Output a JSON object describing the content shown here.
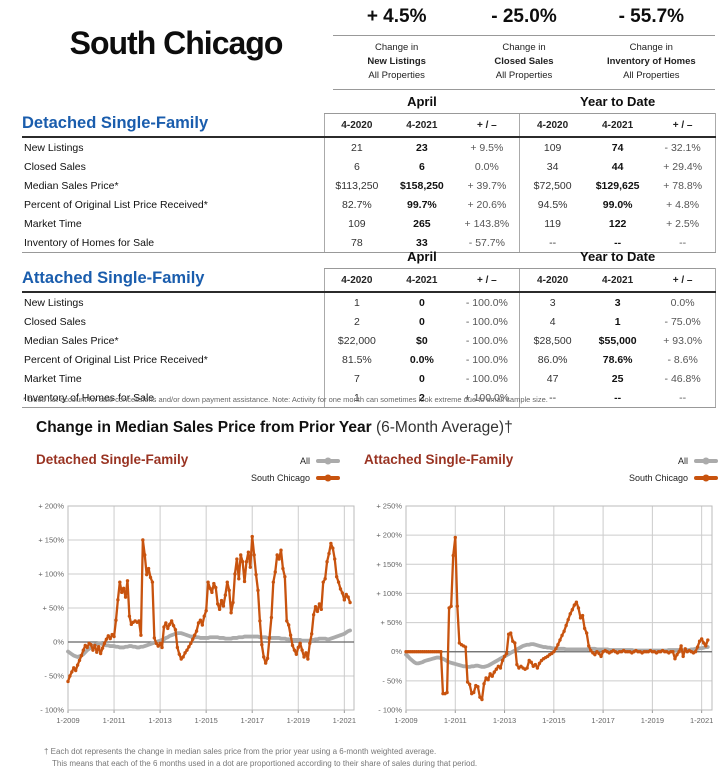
{
  "header": {
    "title": "South Chicago",
    "stats": [
      {
        "value": "+ 4.5%",
        "line1": "Change in",
        "line2": "New Listings",
        "line3": "All Properties"
      },
      {
        "value": "- 25.0%",
        "line1": "Change in",
        "line2": "Closed Sales",
        "line3": "All Properties"
      },
      {
        "value": "- 55.7%",
        "line1": "Change in",
        "line2": "Inventory of Homes",
        "line3": "All Properties"
      }
    ]
  },
  "tables": [
    {
      "title": "Detached Single-Family",
      "period_headers": [
        "April",
        "Year to Date"
      ],
      "col_headers": [
        "4-2020",
        "4-2021",
        "+ / –",
        "4-2020",
        "4-2021",
        "+ / –"
      ],
      "rows": [
        {
          "label": "New Listings",
          "cells": [
            "21",
            "23",
            "+ 9.5%",
            "109",
            "74",
            "- 32.1%"
          ]
        },
        {
          "label": "Closed Sales",
          "cells": [
            "6",
            "6",
            "0.0%",
            "34",
            "44",
            "+ 29.4%"
          ]
        },
        {
          "label": "Median Sales Price*",
          "cells": [
            "$113,250",
            "$158,250",
            "+ 39.7%",
            "$72,500",
            "$129,625",
            "+ 78.8%"
          ]
        },
        {
          "label": "Percent of Original List Price Received*",
          "cells": [
            "82.7%",
            "99.7%",
            "+ 20.6%",
            "94.5%",
            "99.0%",
            "+ 4.8%"
          ]
        },
        {
          "label": "Market Time",
          "cells": [
            "109",
            "265",
            "+ 143.8%",
            "119",
            "122",
            "+ 2.5%"
          ]
        },
        {
          "label": "Inventory of Homes for Sale",
          "cells": [
            "78",
            "33",
            "- 57.7%",
            "--",
            "--",
            "--"
          ]
        }
      ]
    },
    {
      "title": "Attached Single-Family",
      "period_headers": [
        "April",
        "Year to Date"
      ],
      "col_headers": [
        "4-2020",
        "4-2021",
        "+ / –",
        "4-2020",
        "4-2021",
        "+ / –"
      ],
      "rows": [
        {
          "label": "New Listings",
          "cells": [
            "1",
            "0",
            "- 100.0%",
            "3",
            "3",
            "0.0%"
          ]
        },
        {
          "label": "Closed Sales",
          "cells": [
            "2",
            "0",
            "- 100.0%",
            "4",
            "1",
            "- 75.0%"
          ]
        },
        {
          "label": "Median Sales Price*",
          "cells": [
            "$22,000",
            "$0",
            "- 100.0%",
            "$28,500",
            "$55,000",
            "+ 93.0%"
          ]
        },
        {
          "label": "Percent of Original List Price Received*",
          "cells": [
            "81.5%",
            "0.0%",
            "- 100.0%",
            "86.0%",
            "78.6%",
            "- 8.6%"
          ]
        },
        {
          "label": "Market Time",
          "cells": [
            "7",
            "0",
            "- 100.0%",
            "47",
            "25",
            "- 46.8%"
          ]
        },
        {
          "label": "Inventory of Homes for Sale",
          "cells": [
            "1",
            "2",
            "+ 100.0%",
            "--",
            "--",
            "--"
          ]
        }
      ]
    }
  ],
  "table_footnote": "* Does not account for sale concessions and/or down payment assistance. Note: Activity for one month can sometimes look extreme due to small sample size.",
  "charts_section": {
    "title_bold": "Change in Median Sales Price from Prior Year",
    "title_light": " (6-Month Average)†",
    "footnote_line1": "† Each dot represents the change in median sales price from the prior year using a 6-month weighted average.",
    "footnote_line2": "This means that each of the 6 months used in a dot are proportioned according to their share of sales during that period."
  },
  "colors": {
    "accent_blue": "#1A5DAD",
    "chart_title_maroon": "#993322",
    "series_orange": "#C8530E",
    "series_gray": "#ABABAB"
  },
  "chart_data": [
    {
      "type": "line",
      "title": "Detached Single-Family",
      "legend": [
        "All",
        "South Chicago"
      ],
      "legend_position": "top-right",
      "grid": true,
      "x_unit": "month",
      "x_domain": [
        2009,
        2021.42
      ],
      "x_ticks": [
        "1-2009",
        "1-2011",
        "1-2013",
        "1-2015",
        "1-2017",
        "1-2019",
        "1-2021"
      ],
      "ylim": [
        -100,
        200
      ],
      "ytick_step": 50,
      "series": [
        {
          "name": "All",
          "color": "#ABABAB",
          "width": 3.8,
          "dots": false,
          "values": [
            -14,
            -16,
            -18,
            -20,
            -21,
            -22,
            -21,
            -20,
            -18,
            -15,
            -12,
            -10,
            -8,
            -6,
            -4,
            -3,
            -2,
            -2,
            -3,
            -4,
            -5,
            -5,
            -6,
            -6,
            -6,
            -7,
            -7,
            -8,
            -8,
            -8,
            -7,
            -7,
            -6,
            -6,
            -7,
            -7,
            -8,
            -8,
            -7,
            -7,
            -6,
            -5,
            -4,
            -3,
            -2,
            -1,
            0,
            1,
            2,
            3,
            4,
            6,
            7,
            9,
            10,
            11,
            12,
            13,
            13,
            13,
            12,
            11,
            10,
            9,
            8,
            8,
            7,
            7,
            7,
            6,
            6,
            6,
            6,
            6,
            7,
            7,
            7,
            7,
            7,
            6,
            6,
            6,
            5,
            5,
            5,
            5,
            6,
            6,
            6,
            7,
            7,
            7,
            8,
            8,
            8,
            8,
            8,
            8,
            8,
            8,
            7,
            7,
            7,
            7,
            6,
            6,
            6,
            6,
            6,
            6,
            6,
            5,
            5,
            5,
            4,
            4,
            3,
            3,
            3,
            3,
            3,
            3,
            2,
            2,
            2,
            2,
            2,
            3,
            3,
            4,
            4,
            5,
            5,
            5,
            5,
            4,
            4,
            5,
            6,
            7,
            8,
            9,
            10,
            11,
            12,
            14,
            16,
            17
          ]
        },
        {
          "name": "South Chicago",
          "color": "#C8530E",
          "width": 2.3,
          "dots": true,
          "values": [
            -58,
            -50,
            -44,
            -38,
            -42,
            -34,
            -27,
            -20,
            -12,
            -5,
            -8,
            -2,
            -4,
            -12,
            -5,
            -15,
            -7,
            -17,
            -9,
            -2,
            4,
            9,
            5,
            11,
            8,
            32,
            62,
            88,
            73,
            79,
            66,
            90,
            38,
            26,
            29,
            31,
            29,
            31,
            10,
            150,
            128,
            99,
            108,
            95,
            88,
            6,
            -2,
            -6,
            -2,
            -8,
            22,
            28,
            20,
            26,
            31,
            24,
            18,
            -8,
            -18,
            -25,
            -22,
            -16,
            -12,
            -7,
            -2,
            4,
            10,
            16,
            28,
            32,
            25,
            38,
            46,
            88,
            79,
            73,
            86,
            80,
            56,
            48,
            61,
            53,
            69,
            88,
            76,
            43,
            58,
            100,
            122,
            93,
            128,
            118,
            89,
            118,
            132,
            110,
            155,
            128,
            99,
            76,
            31,
            -4,
            -22,
            -31,
            -24,
            6,
            36,
            88,
            103,
            128,
            122,
            135,
            108,
            96,
            31,
            25,
            10,
            -5,
            -12,
            -18,
            -8,
            -2,
            -12,
            -22,
            -16,
            -25,
            -2,
            12,
            40,
            52,
            45,
            56,
            48,
            88,
            93,
            118,
            130,
            145,
            138,
            122,
            96,
            88,
            78,
            72,
            62,
            70,
            66,
            58
          ]
        }
      ]
    },
    {
      "type": "line",
      "title": "Attached Single-Family",
      "legend": [
        "All",
        "South Chicago"
      ],
      "legend_position": "top-right",
      "grid": true,
      "x_unit": "month",
      "x_domain": [
        2009,
        2021.42
      ],
      "x_ticks": [
        "1-2009",
        "1-2011",
        "1-2013",
        "1-2015",
        "1-2017",
        "1-2019",
        "1-2021"
      ],
      "ylim": [
        -100,
        250
      ],
      "ytick_step": 50,
      "series": [
        {
          "name": "All",
          "color": "#ABABAB",
          "width": 3.8,
          "dots": false,
          "values": [
            -5,
            -8,
            -12,
            -15,
            -18,
            -20,
            -20,
            -19,
            -18,
            -16,
            -15,
            -14,
            -13,
            -12,
            -11,
            -10,
            -10,
            -11,
            -12,
            -14,
            -16,
            -18,
            -19,
            -20,
            -21,
            -22,
            -23,
            -24,
            -25,
            -25,
            -26,
            -26,
            -25,
            -25,
            -24,
            -24,
            -25,
            -26,
            -26,
            -25,
            -24,
            -22,
            -20,
            -18,
            -16,
            -14,
            -12,
            -10,
            -8,
            -6,
            -4,
            -2,
            0,
            2,
            4,
            6,
            8,
            10,
            11,
            12,
            12,
            13,
            13,
            12,
            11,
            10,
            9,
            8,
            8,
            7,
            7,
            6,
            6,
            6,
            5,
            5,
            5,
            5,
            4,
            4,
            4,
            4,
            4,
            4,
            4,
            4,
            4,
            4,
            4,
            5,
            5,
            5,
            5,
            4,
            4,
            4,
            4,
            4,
            4,
            3,
            3,
            3,
            3,
            3,
            3,
            3,
            3,
            3,
            3,
            3,
            3,
            2,
            2,
            2,
            2,
            2,
            2,
            2,
            2,
            2,
            2,
            2,
            2,
            2,
            2,
            2,
            2,
            2,
            3,
            3,
            3,
            3,
            3,
            3,
            3,
            2,
            2,
            3,
            3,
            4,
            4,
            5,
            5,
            6,
            6,
            7,
            8,
            8
          ]
        },
        {
          "name": "South Chicago",
          "color": "#C8530E",
          "width": 2.3,
          "dots": true,
          "values": [
            0,
            0,
            0,
            0,
            0,
            0,
            0,
            0,
            0,
            0,
            0,
            0,
            0,
            0,
            0,
            0,
            0,
            0,
            -72,
            -72,
            -70,
            75,
            78,
            165,
            196,
            78,
            15,
            12,
            10,
            8,
            -52,
            -56,
            -72,
            -70,
            -58,
            -60,
            -78,
            -82,
            -55,
            -45,
            -48,
            -38,
            -42,
            -35,
            -30,
            -25,
            -28,
            -15,
            -8,
            -3,
            30,
            32,
            18,
            15,
            -22,
            -28,
            -25,
            -28,
            -30,
            -28,
            -15,
            -18,
            -25,
            -22,
            -28,
            -20,
            -15,
            -12,
            -10,
            -8,
            -5,
            -3,
            0,
            5,
            12,
            20,
            28,
            35,
            45,
            55,
            65,
            72,
            80,
            85,
            75,
            58,
            62,
            40,
            32,
            10,
            2,
            -2,
            -5,
            0,
            -3,
            -8,
            0,
            2,
            0,
            -2,
            0,
            2,
            0,
            -2,
            0,
            0,
            2,
            0,
            0,
            0,
            -2,
            0,
            2,
            0,
            0,
            -2,
            0,
            0,
            0,
            2,
            0,
            0,
            -2,
            0,
            0,
            2,
            0,
            0,
            -2,
            0,
            0,
            -12,
            -5,
            0,
            10,
            -8,
            5,
            0,
            2,
            0,
            -2,
            0,
            8,
            18,
            22,
            15,
            10,
            20
          ]
        }
      ]
    }
  ]
}
